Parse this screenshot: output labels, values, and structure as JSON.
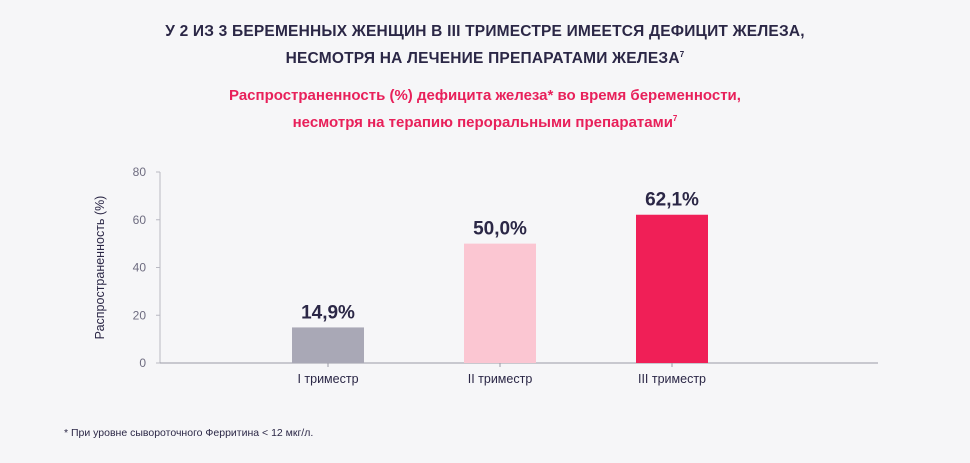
{
  "header": {
    "title_line1": "У 2 ИЗ 3 БЕРЕМЕННЫХ ЖЕНЩИН В III ТРИМЕСТРЕ ИМЕЕТСЯ ДЕФИЦИТ ЖЕЛЕЗА,",
    "title_line2": "НЕСМОТРЯ НА ЛЕЧЕНИЕ ПРЕПАРАТАМИ ЖЕЛЕЗА",
    "title_ref": "7",
    "subtitle_line1": "Распространенность (%) дефицита железа* во время беременности,",
    "subtitle_line2": "несмотря на терапию пероральными препаратами",
    "subtitle_ref": "7"
  },
  "chart_data": {
    "type": "bar",
    "categories": [
      "I триместр",
      "II триместр",
      "III триместр"
    ],
    "values": [
      14.9,
      50.0,
      62.1
    ],
    "value_labels": [
      "14,9%",
      "50,0%",
      "62,1%"
    ],
    "colors": [
      "#a9a8b6",
      "#fbc6d2",
      "#f01f57"
    ],
    "ylabel": "Распространенность (%)",
    "xlabel": "",
    "ylim": [
      0,
      80
    ],
    "yticks": [
      0,
      20,
      40,
      60,
      80
    ],
    "grid": false
  },
  "footnote": "* При уровне сывороточного Ферритина < 12 мкг/л."
}
